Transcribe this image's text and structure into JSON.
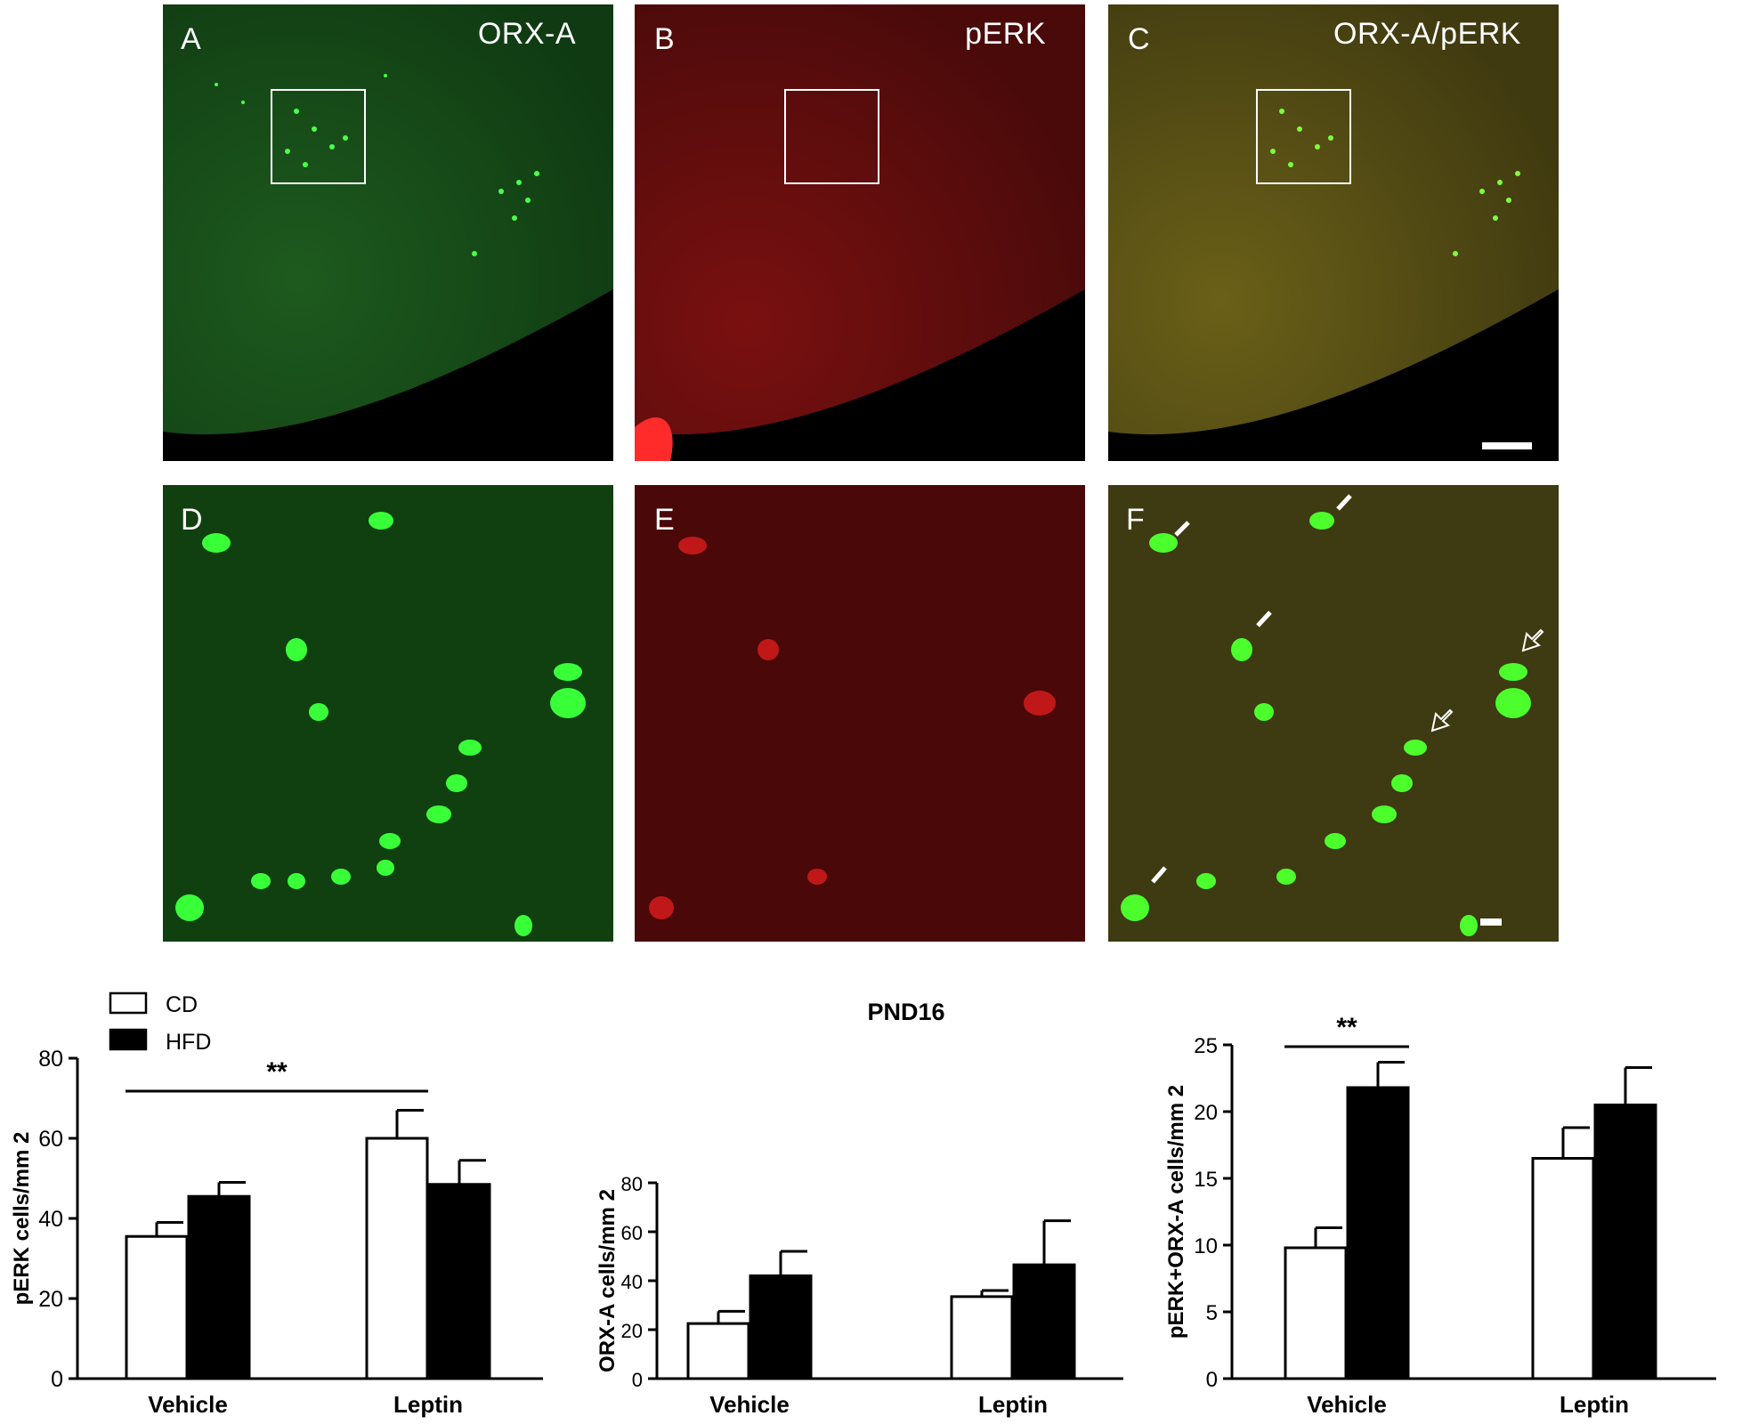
{
  "panels": {
    "A": {
      "letter": "A",
      "stain": "ORX-A"
    },
    "B": {
      "letter": "B",
      "stain": "pERK"
    },
    "C": {
      "letter": "C",
      "stain": "ORX-A/pERK"
    },
    "D": {
      "letter": "D"
    },
    "E": {
      "letter": "E"
    },
    "F": {
      "letter": "F"
    }
  },
  "colors": {
    "green_channel": "#1fd41f",
    "red_channel": "#e01a1a",
    "merge_channel": "#b8a020"
  },
  "legend": {
    "items": [
      {
        "label": "CD",
        "fill": "#ffffff"
      },
      {
        "label": "HFD",
        "fill": "#000000"
      }
    ]
  },
  "heading": "PND16",
  "chart_data": [
    {
      "type": "bar",
      "categories": [
        "Vehicle",
        "Leptin"
      ],
      "series": [
        {
          "name": "CD",
          "values": [
            35.5,
            60
          ],
          "errors": [
            3.5,
            7
          ]
        },
        {
          "name": "HFD",
          "values": [
            45.5,
            48.5
          ],
          "errors": [
            3.5,
            6
          ]
        }
      ],
      "ylabel": "pERK cells/mm 2",
      "ylim": [
        0,
        80
      ],
      "yticks": [
        0,
        20,
        40,
        60,
        80
      ],
      "significance": [
        {
          "label": "**",
          "from": "Vehicle CD",
          "to": "Leptin CD"
        }
      ]
    },
    {
      "type": "bar",
      "categories": [
        "Vehicle",
        "Leptin"
      ],
      "series": [
        {
          "name": "CD",
          "values": [
            22.5,
            33.5
          ],
          "errors": [
            5,
            2.5
          ]
        },
        {
          "name": "HFD",
          "values": [
            42,
            46.5
          ],
          "errors": [
            10,
            18
          ]
        }
      ],
      "ylabel": "ORX-A cells/mm 2",
      "ylim": [
        0,
        80
      ],
      "yticks": [
        0,
        20,
        40,
        60,
        80
      ]
    },
    {
      "type": "bar",
      "categories": [
        "Vehicle",
        "Leptin"
      ],
      "series": [
        {
          "name": "CD",
          "values": [
            9.8,
            16.5
          ],
          "errors": [
            1.5,
            2.3
          ]
        },
        {
          "name": "HFD",
          "values": [
            21.8,
            20.5
          ],
          "errors": [
            1.9,
            2.8
          ]
        }
      ],
      "ylabel": "pERK+ORX-A cells/mm 2",
      "ylim": [
        0,
        25
      ],
      "yticks": [
        0,
        5,
        10,
        15,
        20,
        25
      ],
      "significance": [
        {
          "label": "**",
          "from": "Vehicle CD",
          "to": "Vehicle HFD"
        }
      ]
    }
  ]
}
